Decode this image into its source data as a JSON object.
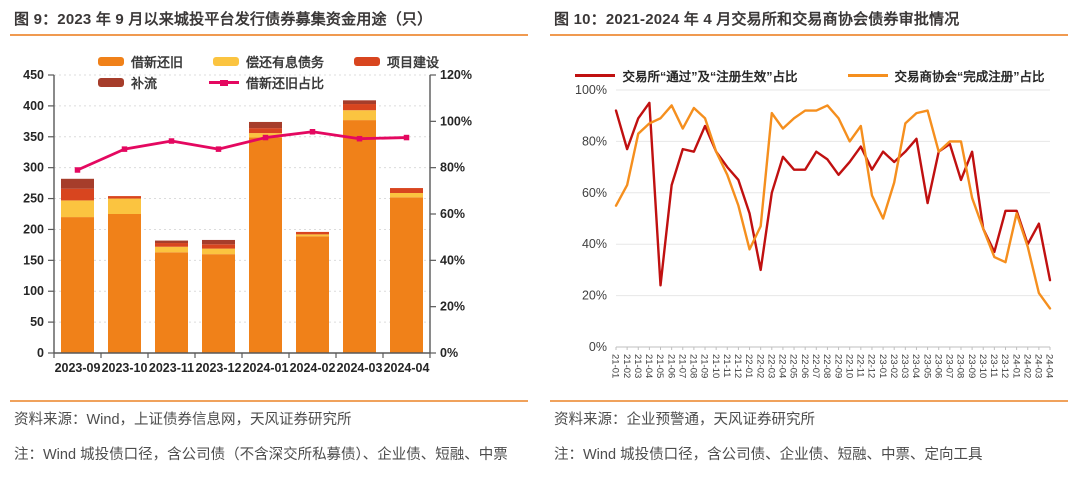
{
  "figures": [
    {
      "title": "图 9：2023 年 9 月以来城投平台发行债券募集资金用途（只）",
      "source": "资料来源：Wind，上证债券信息网，天风证券研究所",
      "note": "注：Wind 城投债口径，含公司债（不含深交所私募债）、企业债、短融、中票",
      "chart_data": {
        "type": "bar",
        "subtype": "stacked-bars-with-ratio-line",
        "categories": [
          "2023-09",
          "2023-10",
          "2023-11",
          "2023-12",
          "2024-01",
          "2024-02",
          "2024-03",
          "2024-04"
        ],
        "series": [
          {
            "name": "借新还旧",
            "kind": "bar",
            "color": "#F08119",
            "values": [
              220,
              225,
              163,
              160,
              349,
              189,
              377,
              252
            ]
          },
          {
            "name": "偿还有息债务",
            "kind": "bar",
            "color": "#FBC440",
            "values": [
              27,
              25,
              9,
              9,
              7,
              3,
              16,
              7
            ]
          },
          {
            "name": "项目建设",
            "kind": "bar",
            "color": "#D8451F",
            "values": [
              19,
              4,
              6,
              7,
              8,
              4,
              10,
              8
            ]
          },
          {
            "name": "补流",
            "kind": "bar",
            "color": "#A63D2B",
            "values": [
              16,
              0,
              4,
              7,
              10,
              0,
              6,
              0
            ]
          },
          {
            "name": "借新还旧占比",
            "kind": "line",
            "axis": "right",
            "color": "#E40860",
            "values": [
              79,
              88,
              91.5,
              88,
              93,
              95.5,
              92.5,
              93
            ]
          }
        ],
        "left_axis": {
          "min": 0,
          "max": 450,
          "step": 50
        },
        "right_axis": {
          "min": 0,
          "max": 120,
          "step": 20,
          "suffix": "%"
        },
        "legend_rows": [
          [
            0,
            1,
            2
          ],
          [
            3,
            4
          ]
        ],
        "grid": "dotted"
      }
    },
    {
      "title": "图 10：2021-2024 年 4 月交易所和交易商协会债券审批情况",
      "source": "资料来源：企业预警通，天风证券研究所",
      "note": "注：Wind 城投债口径，含公司债、企业债、短融、中票、定向工具",
      "chart_data": {
        "type": "line",
        "x": [
          "21-01",
          "21-02",
          "21-03",
          "21-04",
          "21-05",
          "21-06",
          "21-07",
          "21-08",
          "21-09",
          "21-10",
          "21-11",
          "21-12",
          "22-01",
          "22-02",
          "22-03",
          "22-04",
          "22-05",
          "22-06",
          "22-07",
          "22-08",
          "22-09",
          "22-10",
          "22-11",
          "22-12",
          "23-01",
          "23-02",
          "23-03",
          "23-04",
          "23-05",
          "23-06",
          "23-07",
          "23-08",
          "23-09",
          "23-10",
          "23-11",
          "23-12",
          "24-01",
          "24-02",
          "24-03",
          "24-04"
        ],
        "series": [
          {
            "name": "交易所“通过”及“注册生效”占比",
            "color": "#C01010",
            "values": [
              92,
              77,
              89,
              95,
              24,
              63,
              77,
              76,
              86,
              76,
              70,
              65,
              52,
              30,
              60,
              74,
              69,
              69,
              76,
              73,
              67,
              72,
              78,
              69,
              76,
              72,
              76,
              81,
              56,
              76,
              79,
              65,
              76,
              46,
              37,
              53,
              53,
              40,
              48,
              26
            ]
          },
          {
            "name": "交易商协会“完成注册”占比",
            "color": "#F58F1E",
            "values": [
              55,
              63,
              83,
              87,
              89,
              94,
              85,
              93,
              89,
              76,
              67,
              55,
              38,
              47,
              91,
              85,
              89,
              92,
              92,
              94,
              89,
              80,
              86,
              59,
              50,
              64,
              87,
              91,
              92,
              76,
              80,
              80,
              58,
              46,
              35,
              33,
              52,
              39,
              21,
              15
            ]
          }
        ],
        "y_axis": {
          "min": 0,
          "max": 100,
          "step": 20,
          "suffix": "%"
        },
        "legend_position": "top-center",
        "grid": "horizontal"
      }
    }
  ],
  "styles": {
    "accent_rule_color": "#F09A50",
    "title_color": "#3B3838",
    "body_text_color": "#4d4d4d",
    "axis_text_color": "#262626",
    "grid_color": "#DCDCDC"
  }
}
